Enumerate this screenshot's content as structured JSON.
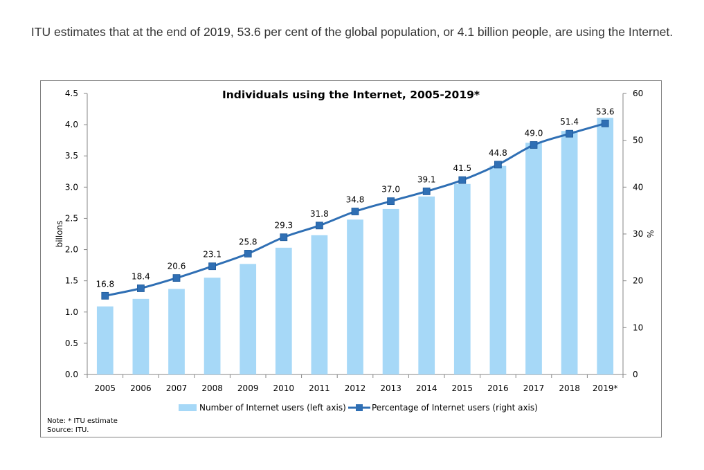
{
  "headline": "ITU estimates that at the end of 2019, 53.6 per cent of the global population, or 4.1 billion people, are using the Internet.",
  "chart_data": {
    "type": "bar",
    "title": "Individuals using the Internet, 2005-2019*",
    "categories": [
      "2005",
      "2006",
      "2007",
      "2008",
      "2009",
      "2010",
      "2011",
      "2012",
      "2013",
      "2014",
      "2015",
      "2016",
      "2017",
      "2018",
      "2019*"
    ],
    "series": [
      {
        "name": "Number of Internet users (left axis)",
        "type": "bar",
        "axis": "left",
        "color": "#a6d8f7",
        "values": [
          1.09,
          1.21,
          1.37,
          1.55,
          1.77,
          2.03,
          2.23,
          2.48,
          2.65,
          2.85,
          3.05,
          3.34,
          3.71,
          3.9,
          4.11
        ]
      },
      {
        "name": "Percentage of Internet users (right axis)",
        "type": "line",
        "axis": "right",
        "color": "#2f6fb4",
        "values": [
          16.8,
          18.4,
          20.6,
          23.1,
          25.8,
          29.3,
          31.8,
          34.8,
          37.0,
          39.1,
          41.5,
          44.8,
          49.0,
          51.4,
          53.6
        ],
        "labels": [
          "16.8",
          "18.4",
          "20.6",
          "23.1",
          "25.8",
          "29.3",
          "31.8",
          "34.8",
          "37.0",
          "39.1",
          "41.5",
          "44.8",
          "49.0",
          "51.4",
          "53.6"
        ]
      }
    ],
    "ylabel_left": "billons",
    "ylabel_right": "%",
    "ylim_left": [
      0,
      4.5
    ],
    "ylim_right": [
      0,
      60
    ],
    "yticks_left": [
      "0.0",
      "0.5",
      "1.0",
      "1.5",
      "2.0",
      "2.5",
      "3.0",
      "3.5",
      "4.0",
      "4.5"
    ],
    "yticks_right": [
      "0",
      "10",
      "20",
      "30",
      "40",
      "50",
      "60"
    ],
    "legend_position": "bottom",
    "grid": false
  },
  "note_line1": "Note: * ITU estimate",
  "note_line2": "Source: ITU."
}
